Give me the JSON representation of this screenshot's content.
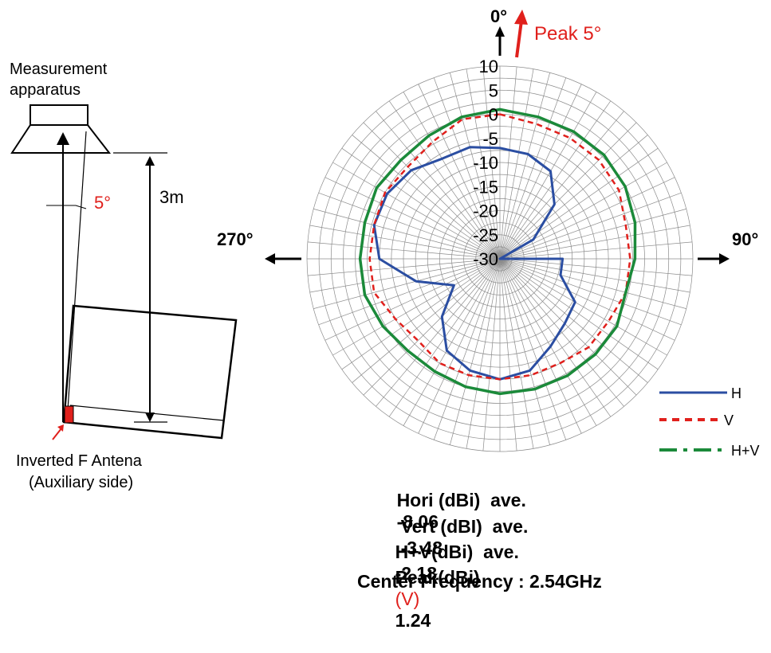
{
  "setup": {
    "apparatus_label_line1": "Measurement",
    "apparatus_label_line2": "apparatus",
    "distance_label": "3m",
    "tilt_label": "5°",
    "antenna_label_line1": "Inverted F Antena",
    "antenna_label_line2": "(Auxiliary side)"
  },
  "direction_labels": {
    "top": "0°",
    "peak": "Peak 5°",
    "left": "270°",
    "right": "90°"
  },
  "stats": {
    "hori_label": "Hori (dBi)  ave.",
    "hori_value": "-8.06",
    "vert_label": "Vert (dBI)  ave.",
    "vert_value": "-3.48",
    "hv_label": "H+V(dBi)  ave.",
    "hv_value": "-2.18",
    "peak_label": "Peak(dBi)",
    "peak_pol": "(V)",
    "peak_value": "1.24",
    "center_label": "Center Frequency : 2.54GHz"
  },
  "colors": {
    "H": "#2b4ea2",
    "V": "#e0201c",
    "HV": "#1b8a3a",
    "grid": "#8c8c8c",
    "accent_red": "#e0201c"
  },
  "chart_data": {
    "type": "polar",
    "radial_ticks": [
      "10",
      "5",
      "0",
      "-5",
      "-10",
      "-15",
      "-20",
      "-25",
      "-30"
    ],
    "rlim": [
      -30,
      10
    ],
    "angle_step_deg": 5,
    "legend": [
      "H",
      "V",
      "H+V"
    ],
    "legend_position": "bottom-right",
    "angles_deg": [
      0,
      15,
      30,
      45,
      60,
      75,
      90,
      105,
      120,
      135,
      150,
      165,
      180,
      195,
      210,
      225,
      240,
      255,
      270,
      285,
      300,
      315,
      330,
      345
    ],
    "series": [
      {
        "name": "H",
        "values": [
          -7,
          -7.5,
          -9,
          -14,
          -22,
          -30,
          -17,
          -17,
          -12,
          -11,
          -9,
          -6,
          -5,
          -6,
          -8,
          -13,
          -19,
          -12,
          -5,
          -3,
          -3,
          -4,
          -6,
          -6
        ]
      },
      {
        "name": "V",
        "values": [
          0,
          -1,
          -1,
          -1,
          -1.5,
          -3,
          -3,
          -3,
          -4,
          -4,
          -5,
          -5,
          -5,
          -5,
          -5,
          -6,
          -5,
          -3,
          -3,
          -3,
          -2.5,
          -3,
          -2,
          0
        ]
      },
      {
        "name": "H+V",
        "values": [
          1,
          0.5,
          0.5,
          0.5,
          0,
          -1,
          -2,
          -3,
          -2,
          -2,
          -2,
          -2,
          -2,
          -2.5,
          -3,
          -3,
          -2,
          -1,
          -1,
          -1,
          -0.5,
          -1,
          -0.5,
          0.5
        ]
      }
    ]
  }
}
